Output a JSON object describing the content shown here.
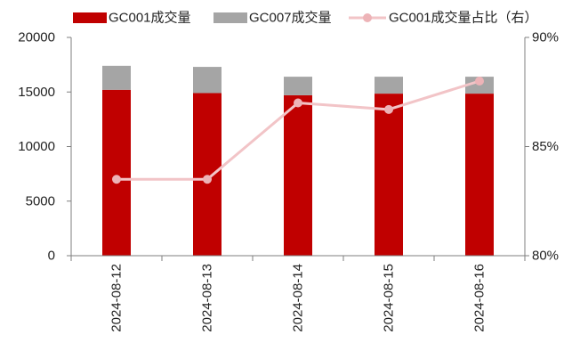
{
  "chart_data": {
    "type": "bar",
    "stacked": true,
    "categories": [
      "2024-08-12",
      "2024-08-13",
      "2024-08-14",
      "2024-08-15",
      "2024-08-16"
    ],
    "series": [
      {
        "name": "GC001成交量",
        "type": "bar",
        "axis": "left",
        "color": "#C00000",
        "values": [
          15200,
          14900,
          14700,
          14850,
          14850
        ]
      },
      {
        "name": "GC007成交量",
        "type": "bar",
        "axis": "left",
        "color": "#A5A5A5",
        "values": [
          2200,
          2400,
          1700,
          1550,
          1550
        ]
      },
      {
        "name": "GC001成交量占比（右）",
        "type": "line",
        "axis": "right",
        "color": "#F2C4C7",
        "marker_color": "#EDB3B7",
        "values": [
          83.5,
          83.5,
          87.0,
          86.7,
          88.0
        ]
      }
    ],
    "ylim": [
      0,
      20000
    ],
    "yticks": [
      0,
      5000,
      10000,
      15000,
      20000
    ],
    "y2lim": [
      80,
      90
    ],
    "y2ticks": [
      "80%",
      "85%",
      "90%"
    ],
    "xlabel": "",
    "ylabel": "",
    "grid": false,
    "legend_position": "top"
  }
}
